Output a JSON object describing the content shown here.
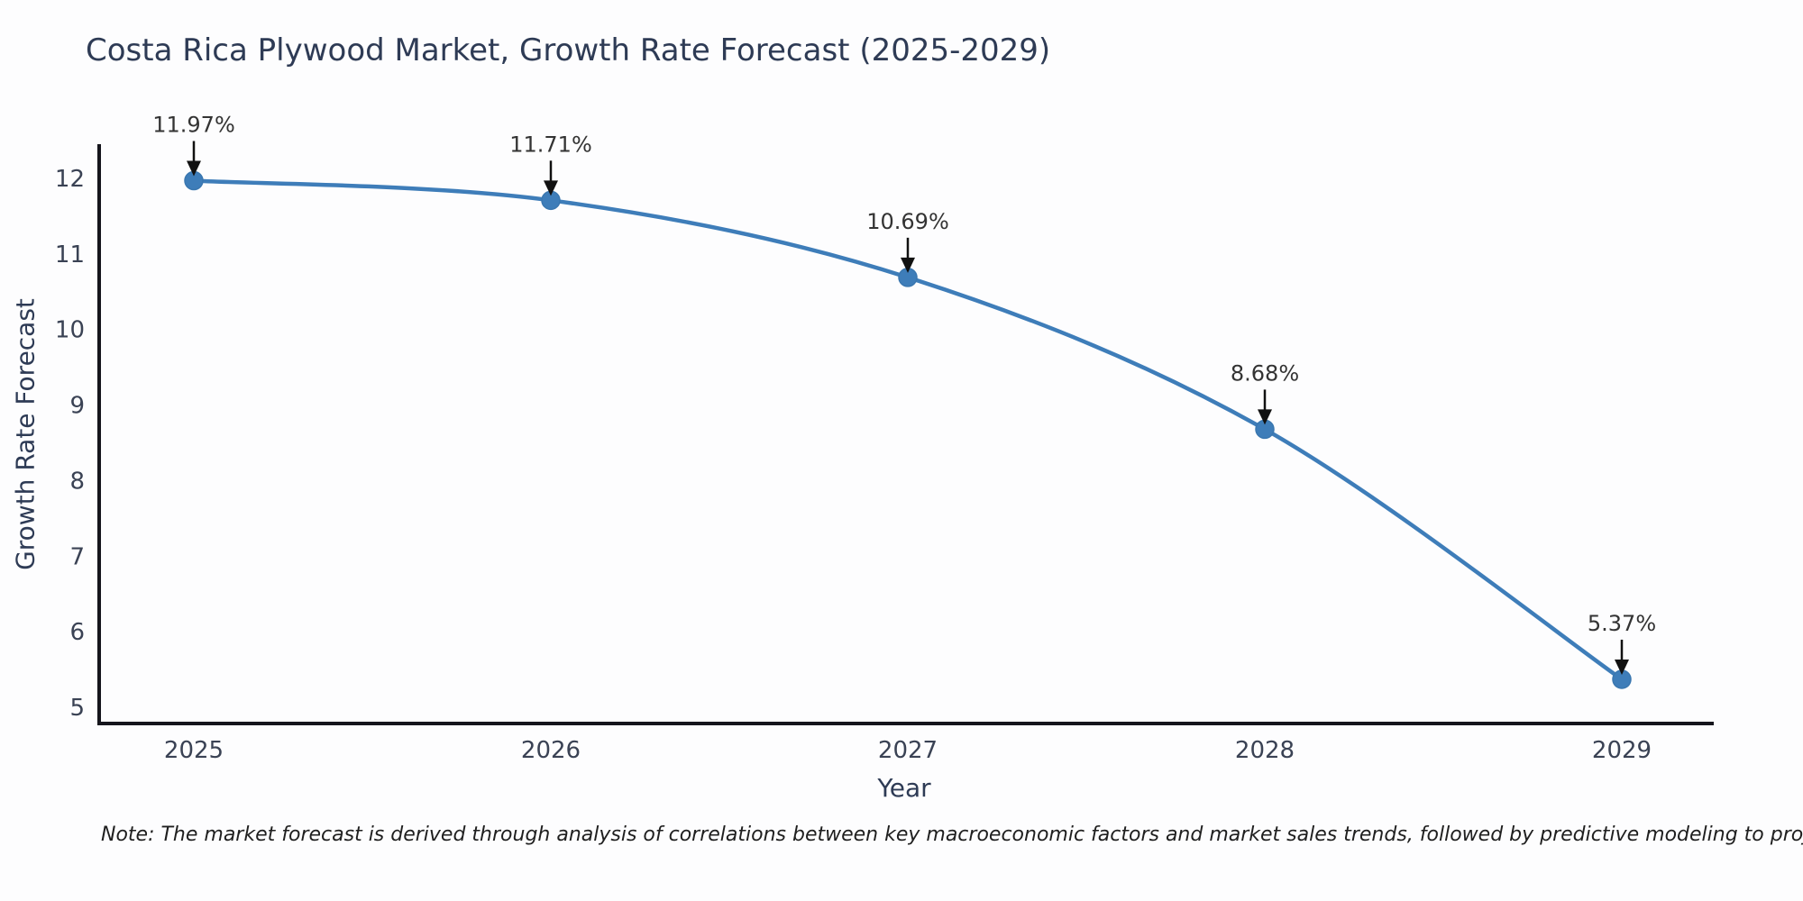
{
  "title": "Costa Rica Plywood Market, Growth Rate Forecast (2025-2029)",
  "note": "Note: The market forecast is derived through analysis of correlations between key macroeconomic factors and market sales trends, followed by predictive modeling to project future sales",
  "chart_data": {
    "type": "line",
    "title": "Costa Rica Plywood Market, Growth Rate Forecast (2025-2029)",
    "xlabel": "Year",
    "ylabel": "Growth Rate Forecast",
    "x": [
      2025,
      2026,
      2027,
      2028,
      2029
    ],
    "series": [
      {
        "name": "Growth Rate Forecast",
        "values": [
          11.97,
          11.71,
          10.69,
          8.68,
          5.37
        ]
      }
    ],
    "point_labels": [
      "11.97%",
      "11.71%",
      "10.69%",
      "8.68%",
      "5.37%"
    ],
    "xticks": [
      "2025",
      "2026",
      "2027",
      "2028",
      "2029"
    ],
    "yticks": [
      5,
      6,
      7,
      8,
      9,
      10,
      11,
      12
    ],
    "ylim": [
      4.8,
      12.5
    ],
    "grid": false,
    "legend_position": "none",
    "line_color": "#3e7db9",
    "marker_color": "#3e7db9",
    "arrow_color": "#111111",
    "spine_color": "#15151c",
    "title_color": "#2e3b55",
    "tick_color": "#3a4254",
    "background_color": "#fdfdfe"
  }
}
